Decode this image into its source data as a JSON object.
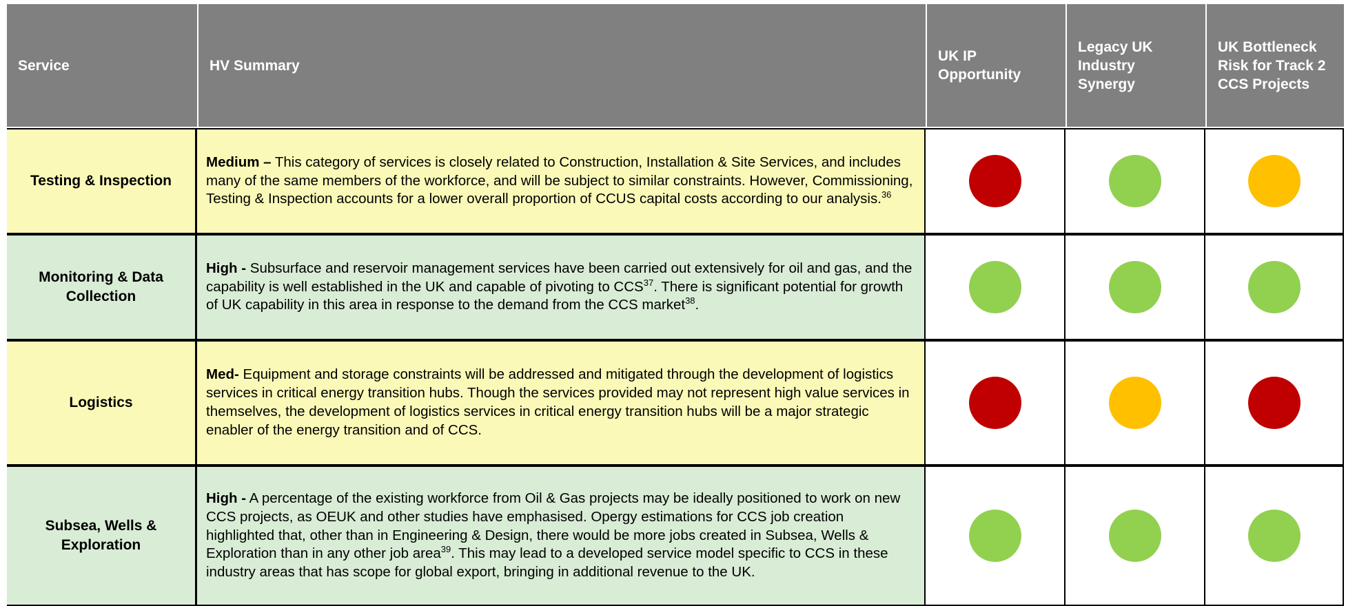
{
  "table": {
    "header": [
      "Service",
      "HV Summary",
      "UK IP Opportunity",
      "Legacy UK Industry Synergy",
      "UK Bottleneck Risk for Track 2 CCS Projects"
    ],
    "rows": [
      {
        "service": "Testing & Inspection",
        "fill": "#fbf9b8",
        "lead": "Medium –",
        "parts": [
          {
            "text": " This category of services is closely related to Construction, Installation & Site Services, and includes many of the same members of the workforce, and will be subject to similar constraints. However, Commissioning, Testing & Inspection accounts for a lower overall proportion of CCUS capital costs according to our analysis."
          },
          {
            "sup": "36"
          }
        ],
        "ratings": [
          "#c00000",
          "#92d050",
          "#ffc000"
        ]
      },
      {
        "service": "Monitoring & Data Collection",
        "fill": "#d9edd6",
        "lead": "High -",
        "parts": [
          {
            "text": " Subsurface and reservoir management services have been carried out extensively for oil and gas, and the capability is well established in the UK and capable of pivoting to CCS"
          },
          {
            "sup": "37"
          },
          {
            "text": ". There is significant potential for growth of UK capability in this area in response to the demand from the CCS market"
          },
          {
            "sup": "38"
          },
          {
            "text": "."
          }
        ],
        "ratings": [
          "#92d050",
          "#92d050",
          "#92d050"
        ]
      },
      {
        "service": "Logistics",
        "fill": "#fbf9b8",
        "lead": "Med-",
        "parts": [
          {
            "text": " Equipment and storage constraints will be addressed and mitigated through the development of logistics services in critical energy transition hubs. Though the services provided may not represent high value services in themselves, the development of logistics services in critical energy transition hubs will be a major strategic enabler of the energy transition and of CCS."
          }
        ],
        "ratings": [
          "#c00000",
          "#ffc000",
          "#c00000"
        ]
      },
      {
        "service": "Subsea, Wells & Exploration",
        "fill": "#d9edd6",
        "lead": "High -",
        "parts": [
          {
            "text": " A percentage of the existing workforce from Oil & Gas projects may be ideally positioned to work on new CCS projects, as OEUK and other studies have emphasised. Opergy estimations for CCS job creation highlighted that, other than in Engineering & Design, there would be more jobs created in Subsea, Wells & Exploration than in any other job area"
          },
          {
            "sup": "39"
          },
          {
            "text": ". This may lead to a developed service model specific to CCS in these industry areas that has scope for global export, bringing in additional revenue to the UK."
          }
        ],
        "ratings": [
          "#92d050",
          "#92d050",
          "#92d050"
        ]
      }
    ]
  }
}
